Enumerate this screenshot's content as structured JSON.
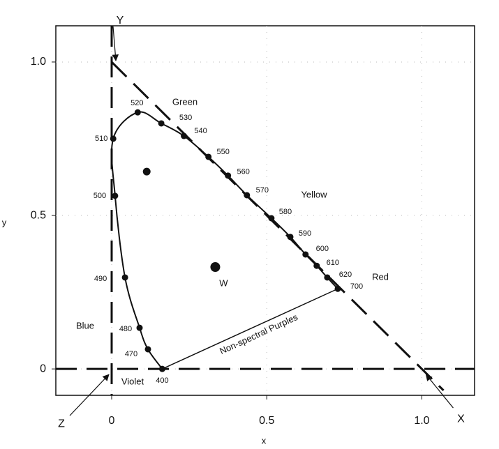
{
  "chart_data": {
    "type": "chromaticity",
    "x_label": "x",
    "y_label": "y",
    "xlim": [
      -0.18,
      1.17
    ],
    "ylim": [
      -0.086,
      1.118
    ],
    "xticks": [
      0,
      0.5,
      {
        "value": 1,
        "label": "1.0"
      }
    ],
    "yticks": [
      0,
      0.5,
      {
        "value": 1,
        "label": "1.0"
      }
    ],
    "grid": true,
    "locus": {
      "labels": [
        "400",
        "470",
        "480",
        "490",
        "500",
        "510",
        "520",
        "530",
        "540",
        "550",
        "560",
        "570",
        "580",
        "590",
        "600",
        "610",
        "620",
        "700"
      ],
      "x": [
        0.163,
        0.117,
        0.09,
        0.043,
        0.011,
        0.005,
        0.084,
        0.16,
        0.233,
        0.312,
        0.375,
        0.436,
        0.515,
        0.576,
        0.625,
        0.661,
        0.695,
        0.729
      ],
      "y": [
        0.0,
        0.064,
        0.134,
        0.298,
        0.564,
        0.75,
        0.836,
        0.8,
        0.759,
        0.691,
        0.63,
        0.566,
        0.491,
        0.43,
        0.373,
        0.336,
        0.298,
        0.261
      ]
    },
    "points": {
      "x": [
        0.113,
        0.334
      ],
      "y": [
        0.643,
        0.332
      ]
    },
    "white_label": "W",
    "primaries": [
      {
        "label": "X",
        "x": 1,
        "y": 0
      },
      {
        "label": "Y",
        "x": 0,
        "y": 1
      },
      {
        "label": "Z",
        "x": 0,
        "y": 0
      }
    ],
    "region_labels": [
      "Green",
      "Yellow",
      "Red",
      "Blue",
      "Violet",
      "Non-spectral Purples"
    ]
  }
}
